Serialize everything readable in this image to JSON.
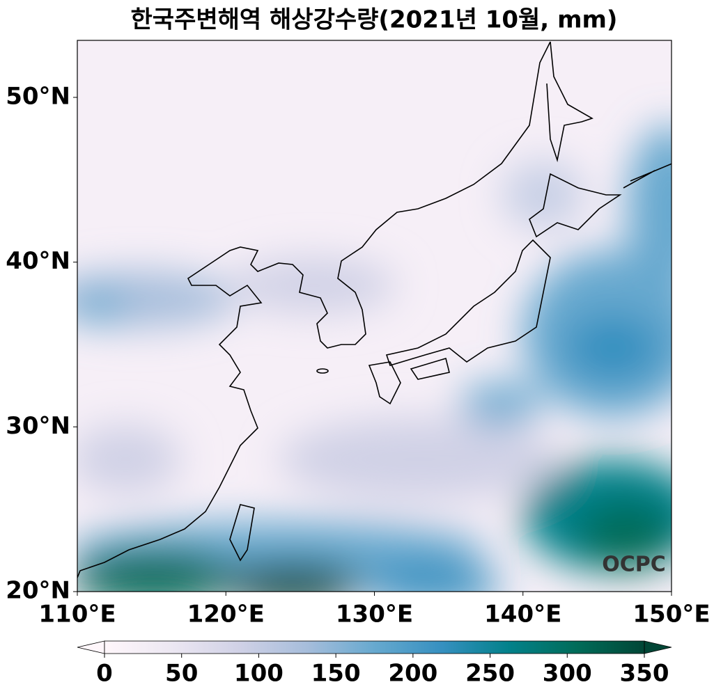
{
  "chart_data": {
    "type": "map",
    "title": "한국주변해역 해상강수량(2021년 10월, mm)",
    "xlim": [
      110,
      150
    ],
    "ylim": [
      20,
      53.46
    ],
    "xticks": [
      {
        "value": 110,
        "label": "110°E"
      },
      {
        "value": 120,
        "label": "120°E"
      },
      {
        "value": 130,
        "label": "130°E"
      },
      {
        "value": 140,
        "label": "140°E"
      },
      {
        "value": 150,
        "label": "150°E"
      }
    ],
    "yticks": [
      {
        "value": 20,
        "label": "20°N"
      },
      {
        "value": 30,
        "label": "30°N"
      },
      {
        "value": 40,
        "label": "40°N"
      },
      {
        "value": 50,
        "label": "50°N"
      }
    ],
    "colorbar": {
      "lim": [
        0,
        350
      ],
      "ticks": [
        0,
        50,
        100,
        150,
        200,
        250,
        300,
        350
      ],
      "colors": [
        "#fff7fb",
        "#ece7f2",
        "#d0d1e6",
        "#a6bddb",
        "#67a9cf",
        "#3690c0",
        "#02818a",
        "#016c59",
        "#014636"
      ]
    },
    "watermark": "OCPC"
  }
}
